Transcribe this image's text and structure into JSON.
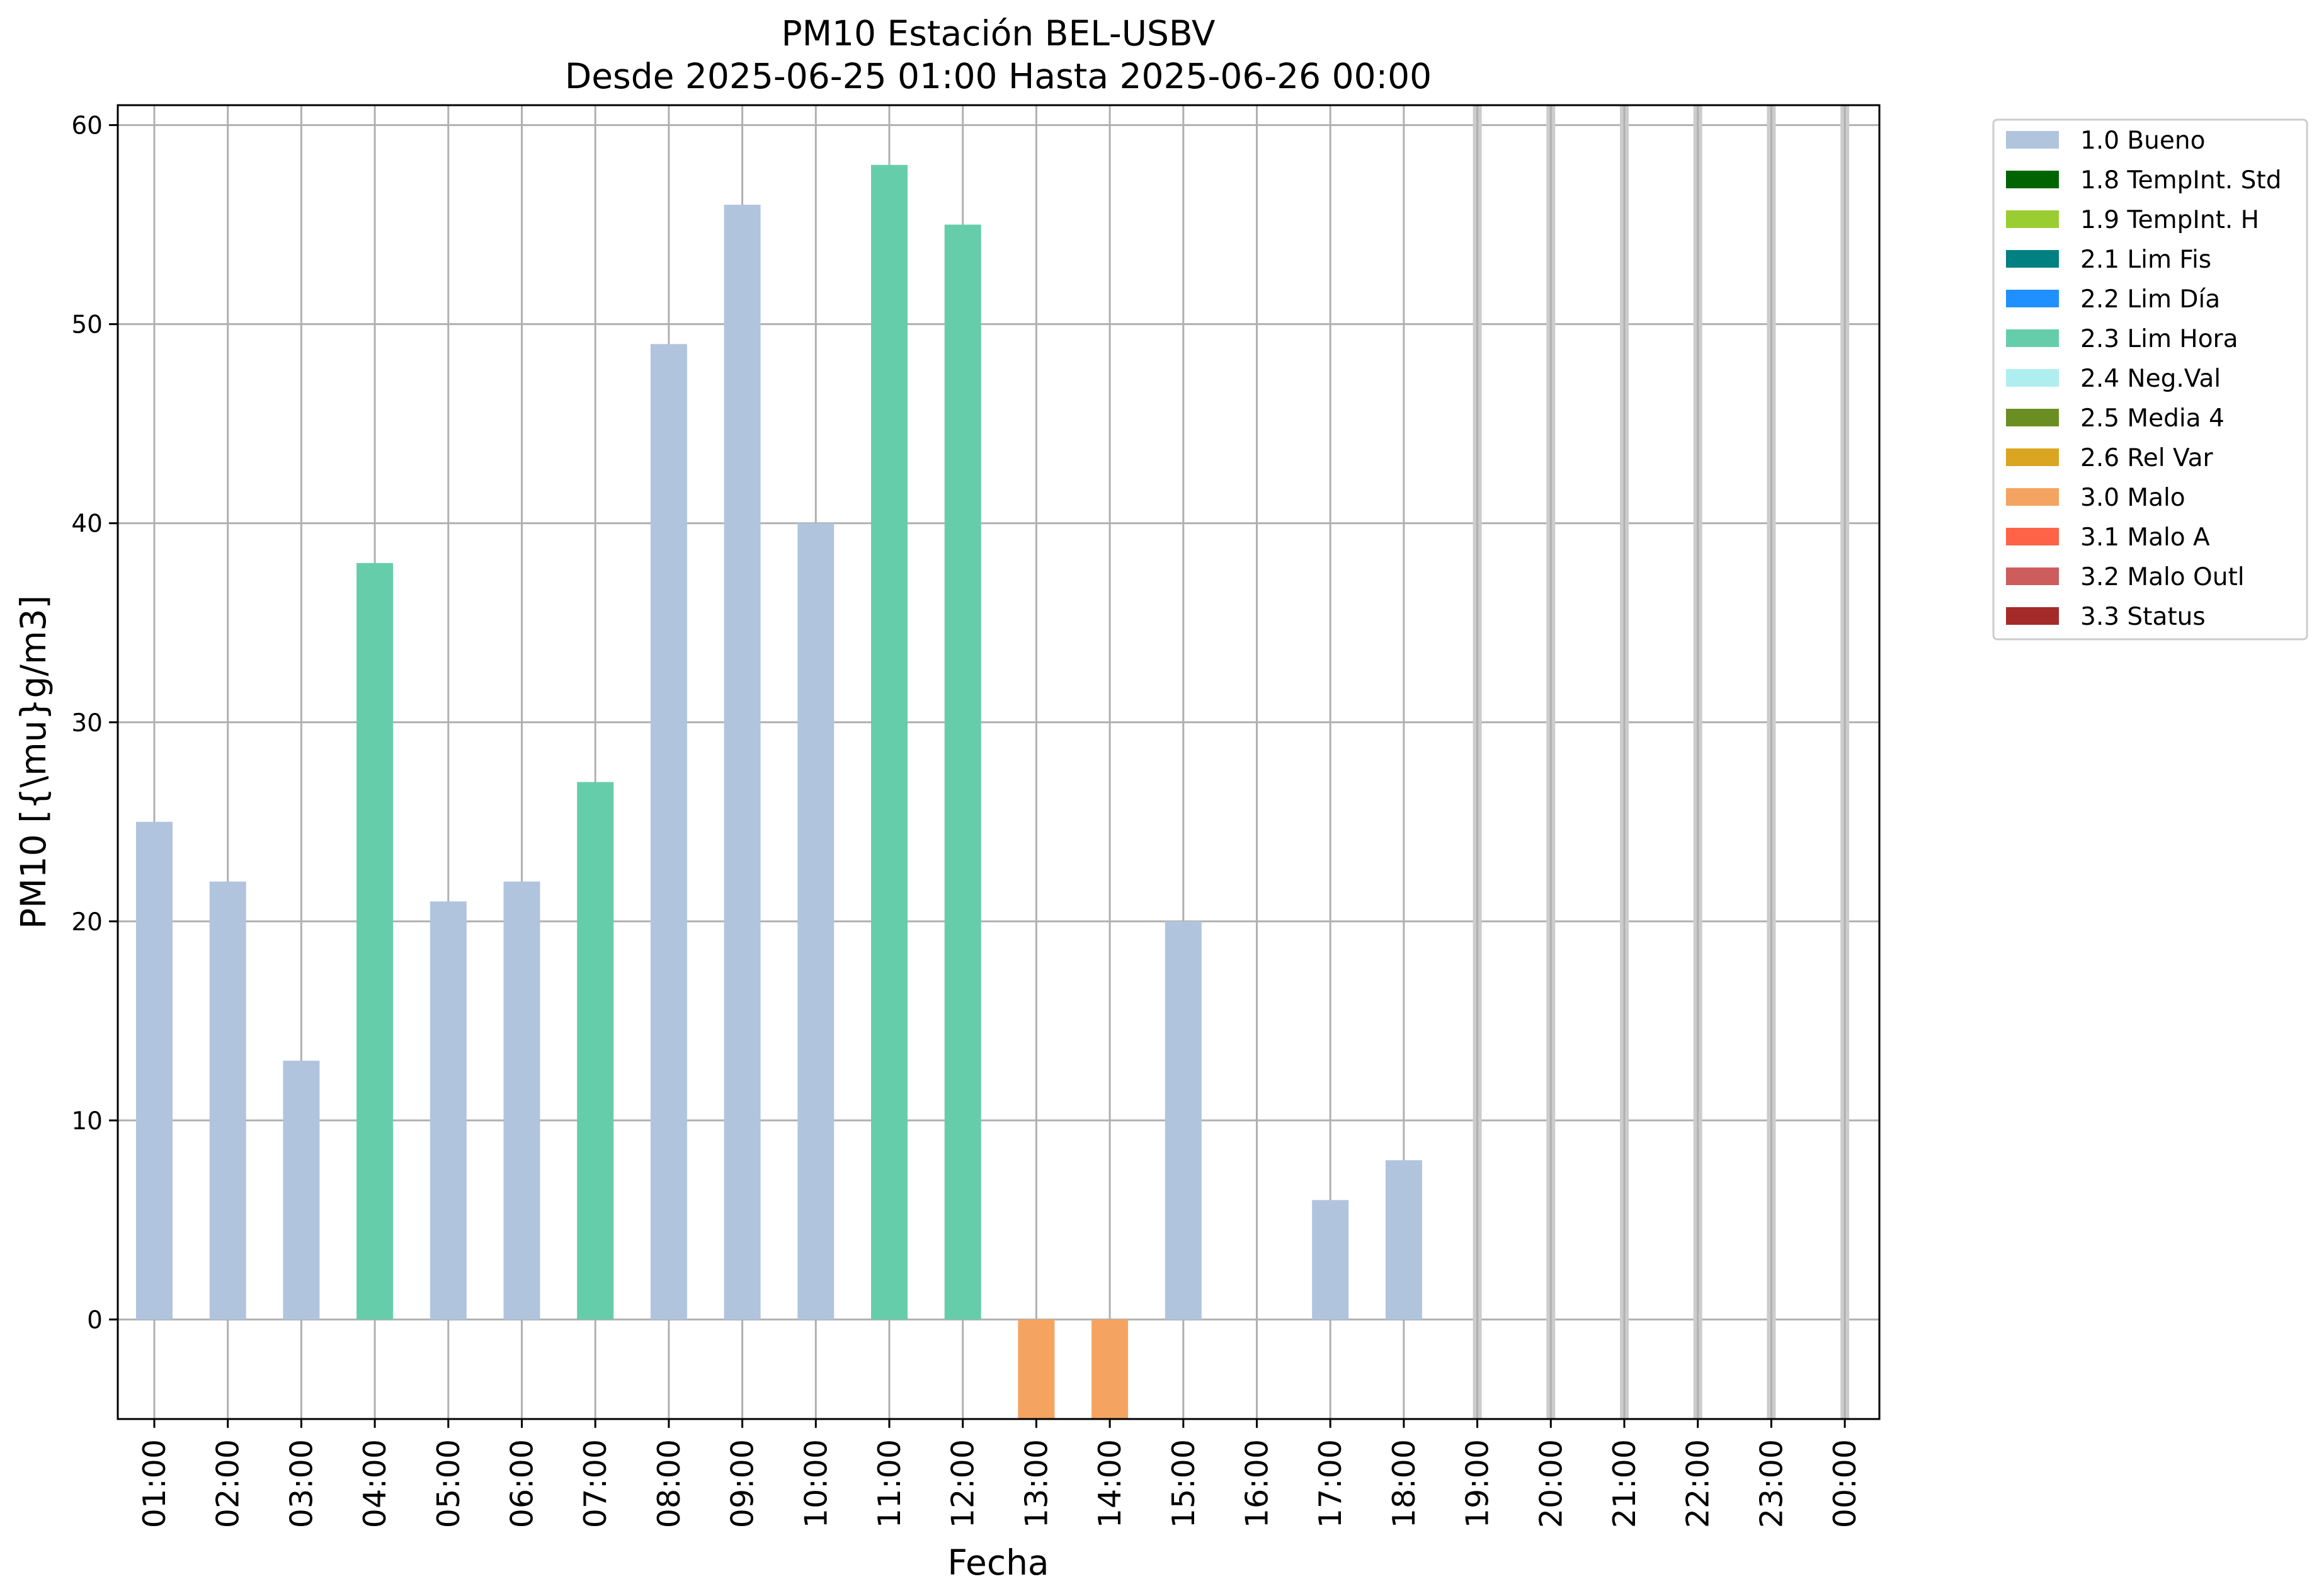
{
  "chart_data": {
    "type": "bar",
    "title": "PM10 Estación BEL-USBV",
    "subtitle": "Desde 2025-06-25 01:00 Hasta 2025-06-26 00:00",
    "xlabel": "Fecha",
    "ylabel": "PM10 [{\\mu}g/m3]",
    "ylim": [
      -5,
      61
    ],
    "yticks": [
      0,
      10,
      20,
      30,
      40,
      50,
      60
    ],
    "grid": true,
    "legend_position": "outside-top-right",
    "categories": [
      "01:00",
      "02:00",
      "03:00",
      "04:00",
      "05:00",
      "06:00",
      "07:00",
      "08:00",
      "09:00",
      "10:00",
      "11:00",
      "12:00",
      "13:00",
      "14:00",
      "15:00",
      "16:00",
      "17:00",
      "18:00",
      "19:00",
      "20:00",
      "21:00",
      "22:00",
      "23:00",
      "00:00"
    ],
    "values": [
      25,
      22,
      13,
      38,
      21,
      22,
      27,
      49,
      56,
      40,
      58,
      55,
      -5,
      -5,
      20,
      null,
      6,
      8,
      null,
      null,
      null,
      null,
      null,
      null
    ],
    "flags": [
      "1.0 Bueno",
      "1.0 Bueno",
      "1.0 Bueno",
      "2.3 Lim Hora",
      "1.0 Bueno",
      "1.0 Bueno",
      "2.3 Lim Hora",
      "1.0 Bueno",
      "1.0 Bueno",
      "1.0 Bueno",
      "2.3 Lim Hora",
      "2.3 Lim Hora",
      "3.0 Malo",
      "3.0 Malo",
      "1.0 Bueno",
      null,
      "1.0 Bueno",
      "1.0 Bueno",
      null,
      null,
      null,
      null,
      null,
      null
    ],
    "missing_markers": [
      "19:00",
      "20:00",
      "21:00",
      "22:00",
      "23:00",
      "00:00"
    ],
    "legend": [
      {
        "label": "1.0 Bueno",
        "color": "#b0c4de"
      },
      {
        "label": "1.8 TempInt. Std",
        "color": "#006400"
      },
      {
        "label": "1.9 TempInt. H",
        "color": "#9acd32"
      },
      {
        "label": "2.1 Lim Fis",
        "color": "#008080"
      },
      {
        "label": "2.2 Lim Día",
        "color": "#1e90ff"
      },
      {
        "label": "2.3 Lim Hora",
        "color": "#66cdaa"
      },
      {
        "label": "2.4 Neg.Val",
        "color": "#afeeee"
      },
      {
        "label": "2.5 Media 4",
        "color": "#6b8e23"
      },
      {
        "label": "2.6 Rel Var",
        "color": "#daa520"
      },
      {
        "label": "3.0 Malo",
        "color": "#f4a460"
      },
      {
        "label": "3.1 Malo A",
        "color": "#ff6347"
      },
      {
        "label": "3.2 Malo Outl",
        "color": "#cd5c5c"
      },
      {
        "label": "3.3 Status",
        "color": "#a52a2a"
      }
    ]
  }
}
